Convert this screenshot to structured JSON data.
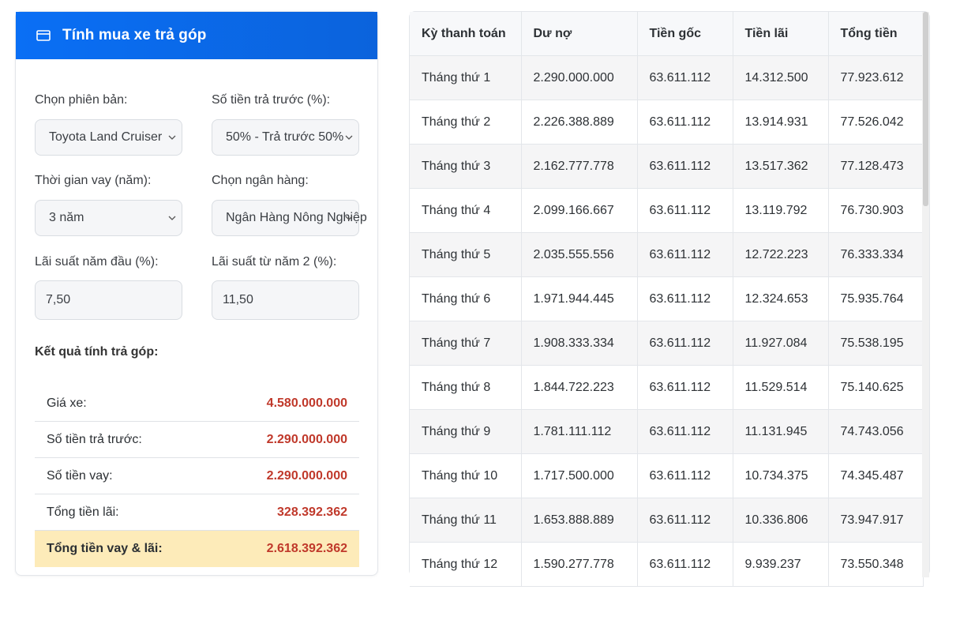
{
  "calculator": {
    "title": "Tính mua xe trả góp",
    "fields": {
      "version_label": "Chọn phiên bản:",
      "version_value": "Toyota Land Cruiser",
      "downpayment_label": "Số tiền trả trước (%):",
      "downpayment_value": "50% - Trả trước 50%",
      "term_label": "Thời gian vay (năm):",
      "term_value": "3 năm",
      "bank_label": "Chọn ngân hàng:",
      "bank_value": "Ngân Hàng Nông Nghiệp",
      "rate1_label": "Lãi suất năm đầu (%):",
      "rate1_value": "7,50",
      "rate2_label": "Lãi suất từ năm 2 (%):",
      "rate2_value": "11,50"
    },
    "result_title": "Kết quả tính trả góp:",
    "results": [
      {
        "label": "Giá xe:",
        "value": "4.580.000.000"
      },
      {
        "label": "Số tiền trả trước:",
        "value": "2.290.000.000"
      },
      {
        "label": "Số tiền vay:",
        "value": "2.290.000.000"
      },
      {
        "label": "Tổng tiền lãi:",
        "value": "328.392.362"
      },
      {
        "label": "Tổng tiền vay & lãi:",
        "value": "2.618.392.362"
      }
    ]
  },
  "schedule": {
    "headers": [
      "Kỳ thanh toán",
      "Dư nợ",
      "Tiền gốc",
      "Tiền lãi",
      "Tổng tiền"
    ],
    "rows": [
      [
        "Tháng thứ 1",
        "2.290.000.000",
        "63.611.112",
        "14.312.500",
        "77.923.612"
      ],
      [
        "Tháng thứ 2",
        "2.226.388.889",
        "63.611.112",
        "13.914.931",
        "77.526.042"
      ],
      [
        "Tháng thứ 3",
        "2.162.777.778",
        "63.611.112",
        "13.517.362",
        "77.128.473"
      ],
      [
        "Tháng thứ 4",
        "2.099.166.667",
        "63.611.112",
        "13.119.792",
        "76.730.903"
      ],
      [
        "Tháng thứ 5",
        "2.035.555.556",
        "63.611.112",
        "12.722.223",
        "76.333.334"
      ],
      [
        "Tháng thứ 6",
        "1.971.944.445",
        "63.611.112",
        "12.324.653",
        "75.935.764"
      ],
      [
        "Tháng thứ 7",
        "1.908.333.334",
        "63.611.112",
        "11.927.084",
        "75.538.195"
      ],
      [
        "Tháng thứ 8",
        "1.844.722.223",
        "63.611.112",
        "11.529.514",
        "75.140.625"
      ],
      [
        "Tháng thứ 9",
        "1.781.111.112",
        "63.611.112",
        "11.131.945",
        "74.743.056"
      ],
      [
        "Tháng thứ 10",
        "1.717.500.000",
        "63.611.112",
        "10.734.375",
        "74.345.487"
      ],
      [
        "Tháng thứ 11",
        "1.653.888.889",
        "63.611.112",
        "10.336.806",
        "73.947.917"
      ],
      [
        "Tháng thứ 12",
        "1.590.277.778",
        "63.611.112",
        "9.939.237",
        "73.550.348"
      ]
    ]
  },
  "colors": {
    "header_blue": "#0b6ae8",
    "value_red": "#c0392b",
    "total_highlight": "#fdebb9"
  },
  "icons": {
    "header": "credit-card-icon",
    "dropdown": "chevron-down-icon"
  }
}
